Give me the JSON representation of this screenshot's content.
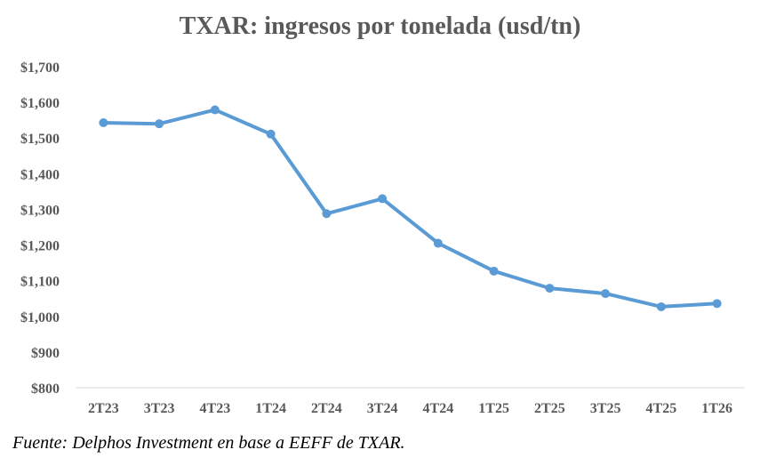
{
  "chart_data": {
    "type": "line",
    "title": "TXAR: ingresos por tonelada (usd/tn)",
    "categories": [
      "2T23",
      "3T23",
      "4T23",
      "1T24",
      "2T24",
      "3T24",
      "4T24",
      "1T25",
      "2T25",
      "3T25",
      "4T25",
      "1T26"
    ],
    "series": [
      {
        "values": [
          1543,
          1540,
          1579,
          1511,
          1288,
          1330,
          1205,
          1127,
          1079,
          1064,
          1027,
          1036
        ]
      }
    ],
    "ylim": [
      800,
      1700
    ],
    "ytick_labels": [
      "$800",
      "$900",
      "$1,000",
      "$1,100",
      "$1,200",
      "$1,300",
      "$1,400",
      "$1,500",
      "$1,600",
      "$1,700"
    ],
    "grid": false,
    "line_color": "#5B9BD5",
    "text_color": "#595959"
  },
  "source": "Fuente: Delphos Investment en base a EEFF de TXAR."
}
